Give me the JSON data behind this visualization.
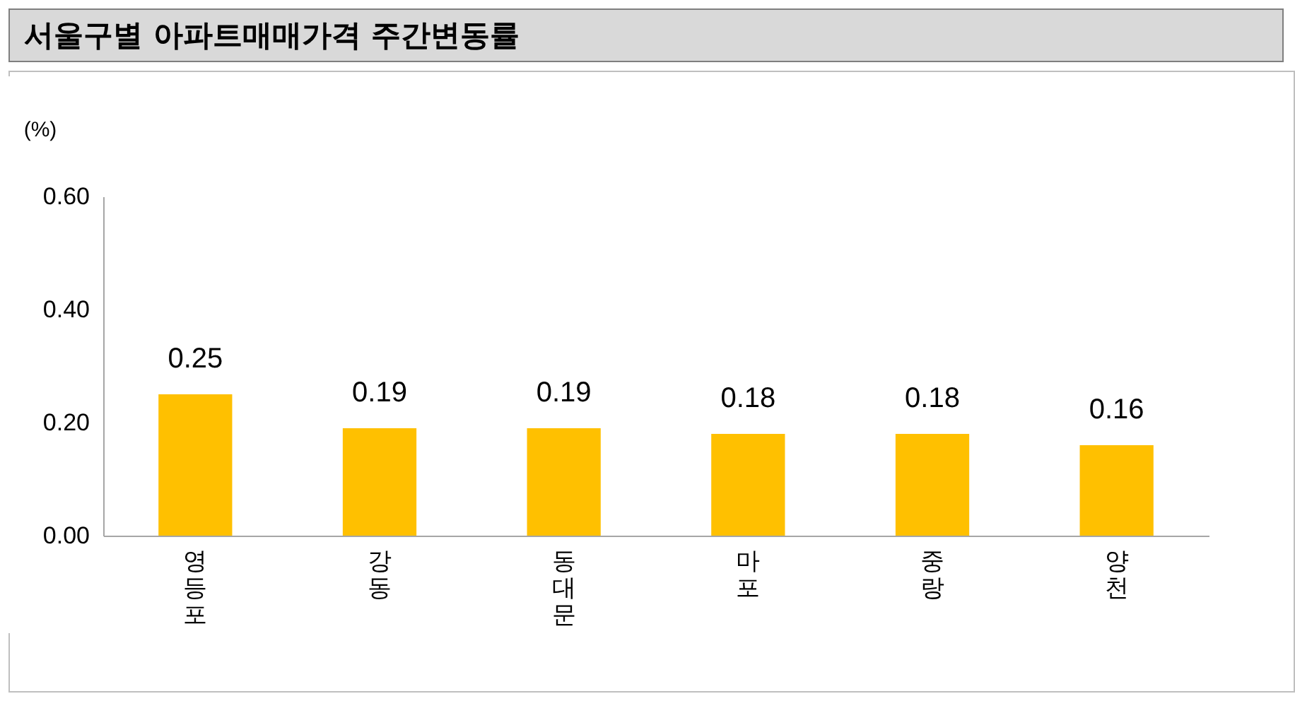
{
  "chart_data": {
    "type": "bar",
    "title": "서울구별 아파트매매가격 주간변동률",
    "ylabel": "(%)",
    "categories": [
      "영등포",
      "강동",
      "동대문",
      "마포",
      "중랑",
      "양천"
    ],
    "values": [
      0.25,
      0.19,
      0.19,
      0.18,
      0.18,
      0.16
    ],
    "color": "#ffc000",
    "ylim": [
      0,
      0.6
    ],
    "yticks": [
      {
        "value": 0,
        "label": "0.00"
      },
      {
        "value": 0.2,
        "label": "0.20"
      },
      {
        "value": 0.4,
        "label": "0.40"
      },
      {
        "value": 0.6,
        "label": "0.60"
      }
    ],
    "data_labels": true,
    "grid": false
  }
}
